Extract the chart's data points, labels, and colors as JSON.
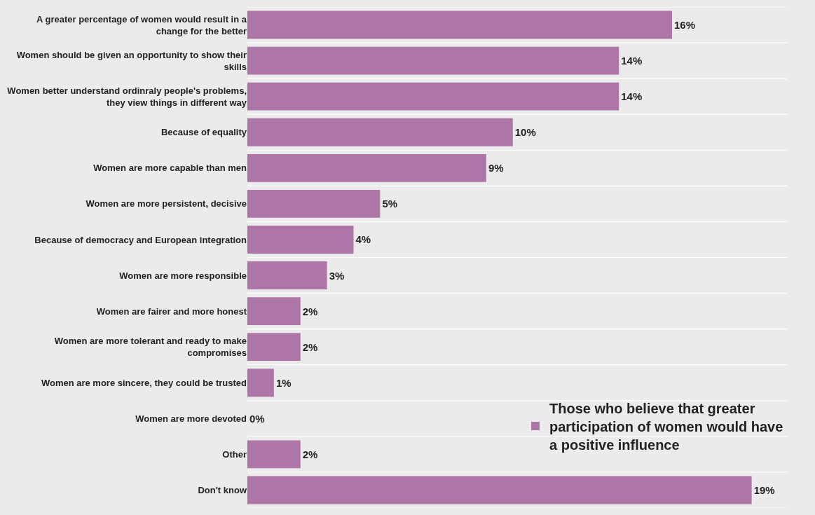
{
  "chart_data": {
    "type": "bar",
    "orientation": "horizontal",
    "categories": [
      "A greater percentage of women would result in a change for the better",
      "Women should be given an opportunity to show their skills",
      "Women better understand ordinraly people's problems, they view things in different way",
      "Because of equality",
      "Women are more capable than men",
      "Women are more persistent, decisive",
      "Because of democracy and European integration",
      "Women are more responsible",
      "Women are fairer and more honest",
      "Women are more tolerant and ready to make compromises",
      "Women are more sincere, they could be trusted",
      "Women are more devoted",
      "Other",
      "Don't know"
    ],
    "series": [
      {
        "name": "Those who believe that greater participation of women would have a positive influence",
        "color": "#ae76a6",
        "values": [
          16,
          14,
          14,
          10,
          9,
          5,
          4,
          3,
          2,
          2,
          1,
          0,
          2,
          19
        ],
        "value_labels": [
          "16%",
          "14%",
          "14%",
          "10%",
          "9%",
          "5%",
          "4%",
          "3%",
          "2%",
          "2%",
          "1%",
          "0%",
          "2%",
          "19%"
        ]
      }
    ],
    "grid": "y",
    "legend": "bottom right"
  }
}
